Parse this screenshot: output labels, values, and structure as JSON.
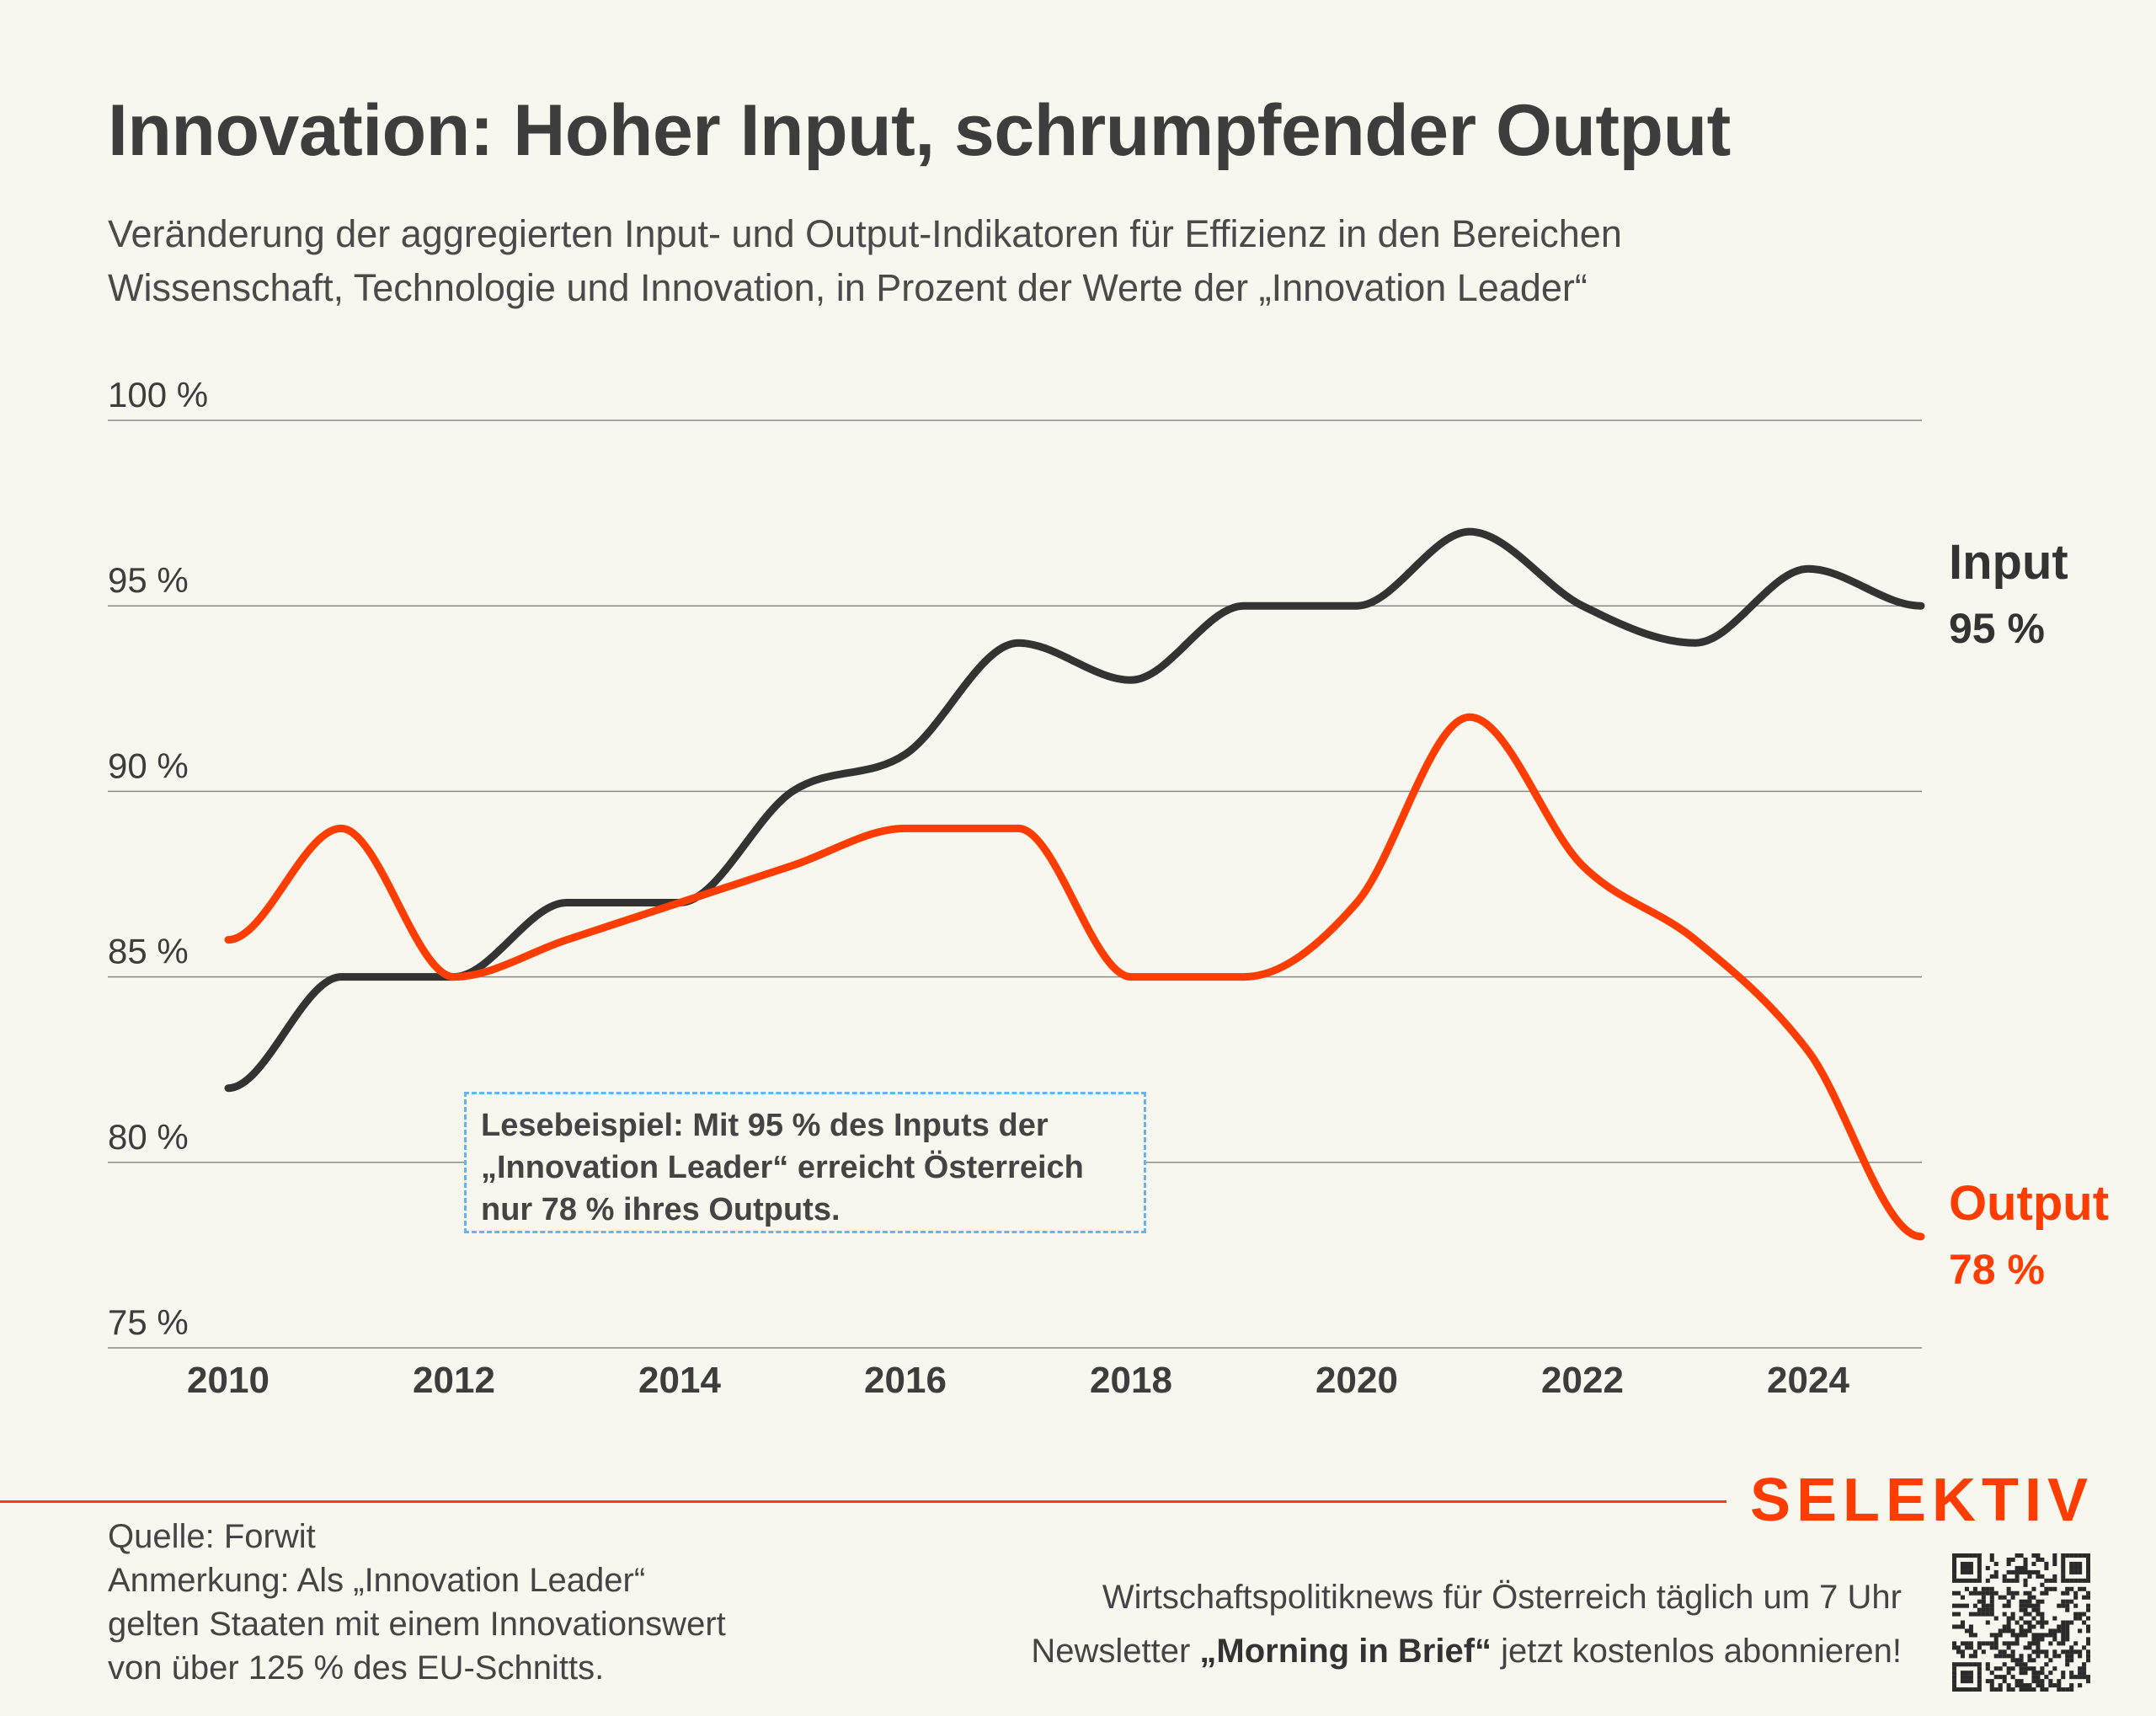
{
  "title": "Innovation: Hoher Input, schrumpfender Output",
  "subtitle_lines": [
    "Veränderung der aggregierten Input- und Output-Indikatoren für Effizienz in den Bereichen",
    "Wissenschaft, Technologie und Innovation, in Prozent der Werte der „Innovation Leader“"
  ],
  "annotation_lines": [
    "Lesebeispiel: Mit 95 % des Inputs der",
    "„Innovation Leader“ erreicht Österreich",
    "nur 78 % ihres Outputs."
  ],
  "source_lines": [
    "Quelle: Forwit",
    "Anmerkung: Als „Innovation Leader“",
    "gelten Staaten mit einem Innovationswert",
    "von über 125 % des EU-Schnitts."
  ],
  "promo": {
    "line1": "Wirtschaftspolitiknews für Österreich täglich um 7 Uhr",
    "line2_pre": "Newsletter ",
    "line2_bold": "„Morning in Brief“",
    "line2_post": " jetzt kostenlos abonnieren!"
  },
  "brand": "SELEKTIV",
  "qr_icon": "qr-code-icon",
  "colors": {
    "background": "#f8f7ef",
    "input": "#333333",
    "output": "#ff3d00",
    "grid": "#8a8a8a",
    "annotation_border": "#64b5f6"
  },
  "chart_data": {
    "type": "line",
    "x": [
      2010,
      2011,
      2012,
      2013,
      2014,
      2015,
      2016,
      2017,
      2018,
      2019,
      2020,
      2021,
      2022,
      2023,
      2024,
      2025
    ],
    "x_ticks": [
      "2010",
      "2012",
      "2014",
      "2016",
      "2018",
      "2020",
      "2022",
      "2024"
    ],
    "y_ticks": [
      "75 %",
      "80 %",
      "85 %",
      "90 %",
      "95 %",
      "100 %"
    ],
    "ylim": [
      75,
      100
    ],
    "grid": true,
    "series": [
      {
        "name": "Input",
        "end_label": "95 %",
        "values": [
          82,
          85,
          85,
          87,
          87,
          90,
          91,
          94,
          93,
          95,
          95,
          97,
          95,
          94,
          96,
          95
        ]
      },
      {
        "name": "Output",
        "end_label": "78 %",
        "values": [
          86,
          89,
          85,
          86,
          87,
          88,
          89,
          89,
          85,
          85,
          87,
          92,
          88,
          86,
          83,
          78
        ]
      }
    ]
  }
}
